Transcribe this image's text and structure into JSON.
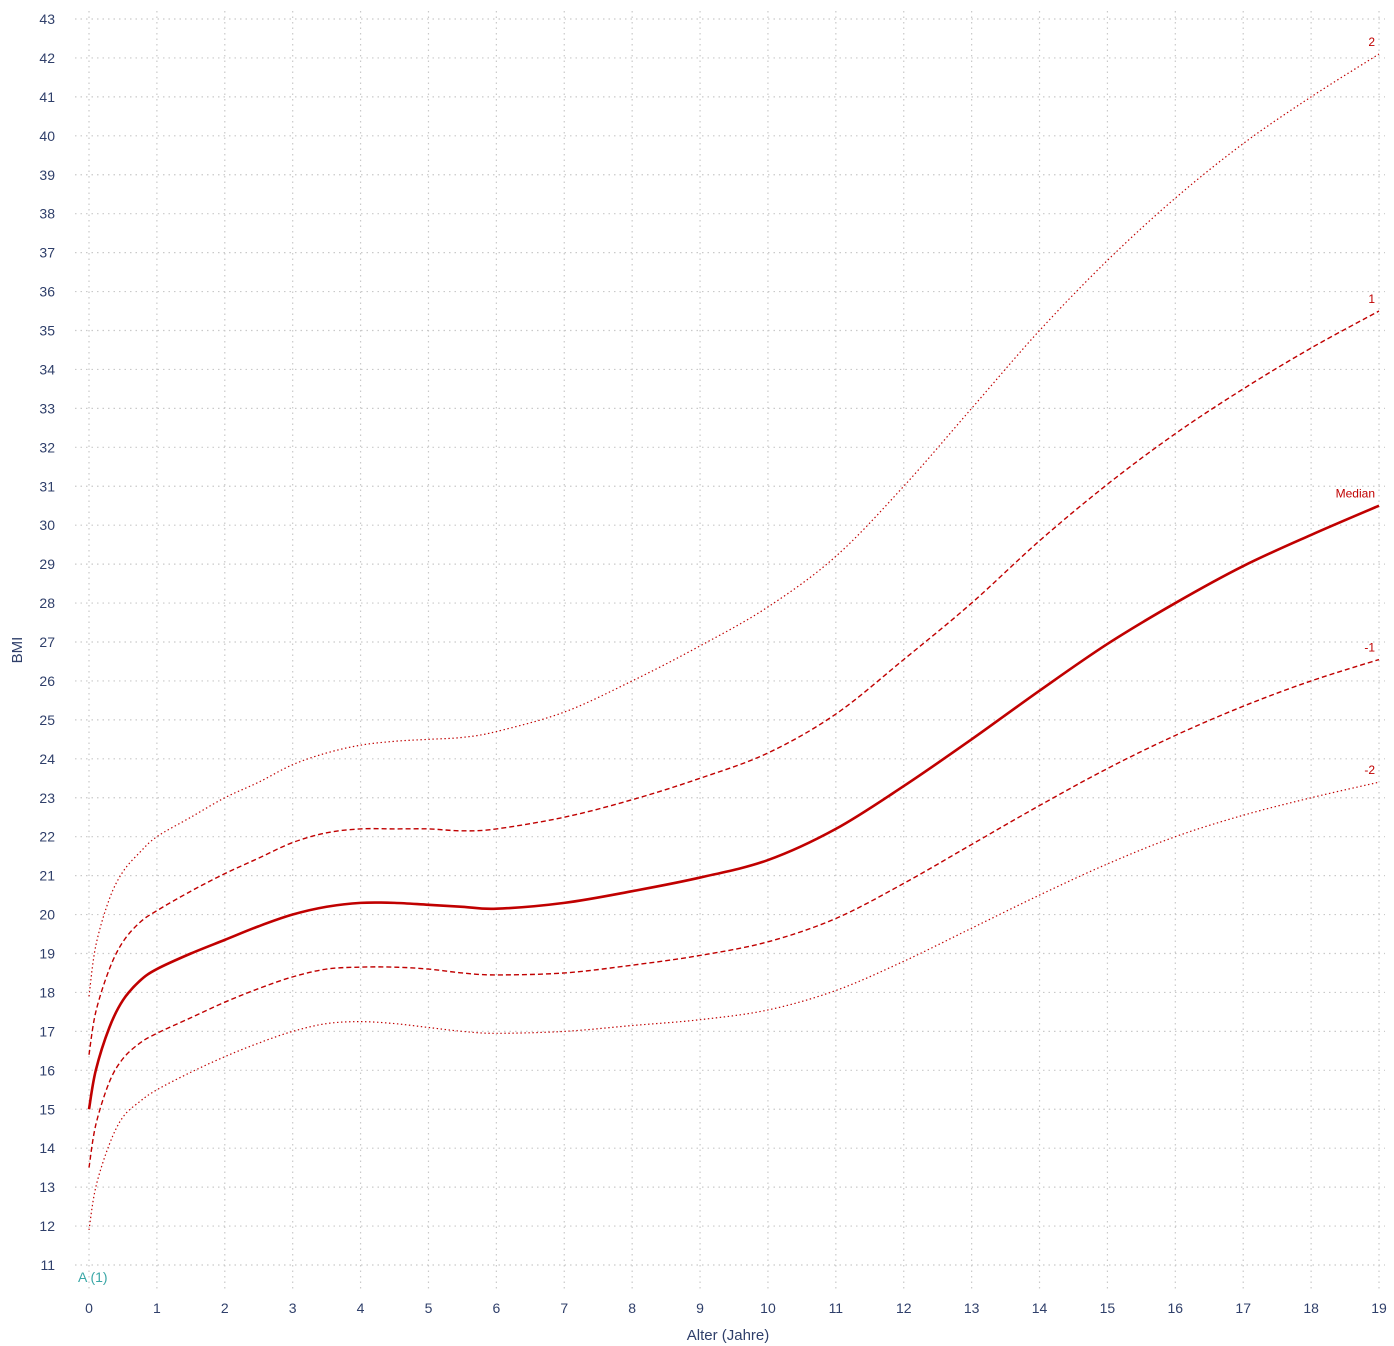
{
  "chart_data": {
    "type": "line",
    "title": "",
    "xlabel": "Alter (Jahre)",
    "ylabel": "BMI",
    "xlim": [
      0,
      19
    ],
    "ylim": [
      11,
      43
    ],
    "x_ticks": [
      0,
      1,
      2,
      3,
      4,
      5,
      6,
      7,
      8,
      9,
      10,
      11,
      12,
      13,
      14,
      15,
      16,
      17,
      18,
      19
    ],
    "y_ticks": [
      11,
      12,
      13,
      14,
      15,
      16,
      17,
      18,
      19,
      20,
      21,
      22,
      23,
      24,
      25,
      26,
      27,
      28,
      29,
      30,
      31,
      32,
      33,
      34,
      35,
      36,
      37,
      38,
      39,
      40,
      41,
      42,
      43
    ],
    "grid": true,
    "line_color": "#c00000",
    "series": [
      {
        "name": "2",
        "style": "dotted",
        "x": [
          0,
          0.1,
          0.3,
          0.5,
          0.75,
          1,
          1.5,
          2,
          2.5,
          3,
          3.5,
          4,
          4.5,
          5,
          5.5,
          6,
          7,
          8,
          9,
          10,
          11,
          12,
          13,
          14,
          15,
          16,
          17,
          18,
          19
        ],
        "y": [
          17.9,
          19.2,
          20.4,
          21.1,
          21.6,
          22.0,
          22.5,
          23.0,
          23.4,
          23.85,
          24.15,
          24.35,
          24.45,
          24.5,
          24.55,
          24.7,
          25.2,
          26.0,
          26.9,
          27.9,
          29.2,
          31.0,
          33.0,
          35.0,
          36.8,
          38.4,
          39.8,
          41.0,
          42.1
        ]
      },
      {
        "name": "1",
        "style": "dashed",
        "x": [
          0,
          0.1,
          0.3,
          0.5,
          0.75,
          1,
          1.5,
          2,
          2.5,
          3,
          3.5,
          4,
          4.5,
          5,
          5.5,
          6,
          7,
          8,
          9,
          10,
          11,
          12,
          13,
          14,
          15,
          16,
          17,
          18,
          19
        ],
        "y": [
          16.4,
          17.5,
          18.6,
          19.3,
          19.8,
          20.1,
          20.6,
          21.05,
          21.45,
          21.85,
          22.1,
          22.2,
          22.2,
          22.2,
          22.15,
          22.2,
          22.5,
          22.95,
          23.5,
          24.15,
          25.15,
          26.55,
          28.0,
          29.6,
          31.05,
          32.35,
          33.5,
          34.55,
          35.5
        ]
      },
      {
        "name": "Median",
        "style": "solid",
        "x": [
          0,
          0.1,
          0.3,
          0.5,
          0.75,
          1,
          1.5,
          2,
          2.5,
          3,
          3.5,
          4,
          4.5,
          5,
          5.5,
          6,
          7,
          8,
          9,
          10,
          11,
          12,
          13,
          14,
          15,
          16,
          17,
          18,
          19
        ],
        "y": [
          15.0,
          16.0,
          17.1,
          17.8,
          18.3,
          18.6,
          19.0,
          19.35,
          19.7,
          20.0,
          20.2,
          20.3,
          20.3,
          20.25,
          20.2,
          20.15,
          20.3,
          20.6,
          20.95,
          21.4,
          22.2,
          23.3,
          24.5,
          25.75,
          26.95,
          28.0,
          28.95,
          29.75,
          30.5
        ]
      },
      {
        "name": "-1",
        "style": "dashed",
        "x": [
          0,
          0.1,
          0.3,
          0.5,
          0.75,
          1,
          1.5,
          2,
          2.5,
          3,
          3.5,
          4,
          4.5,
          5,
          5.5,
          6,
          7,
          8,
          9,
          10,
          11,
          12,
          13,
          14,
          15,
          16,
          17,
          18,
          19
        ],
        "y": [
          13.5,
          14.6,
          15.7,
          16.3,
          16.7,
          16.95,
          17.35,
          17.75,
          18.1,
          18.4,
          18.6,
          18.65,
          18.65,
          18.6,
          18.5,
          18.45,
          18.5,
          18.7,
          18.95,
          19.3,
          19.9,
          20.8,
          21.8,
          22.8,
          23.75,
          24.6,
          25.35,
          26.0,
          26.55
        ]
      },
      {
        "name": "-2",
        "style": "dotted",
        "x": [
          0,
          0.1,
          0.3,
          0.5,
          0.75,
          1,
          1.5,
          2,
          2.5,
          3,
          3.5,
          4,
          4.5,
          5,
          5.5,
          6,
          7,
          8,
          9,
          10,
          11,
          12,
          13,
          14,
          15,
          16,
          17,
          18,
          19
        ],
        "y": [
          11.9,
          13.0,
          14.1,
          14.8,
          15.2,
          15.5,
          15.95,
          16.35,
          16.7,
          17.0,
          17.2,
          17.25,
          17.2,
          17.1,
          17.0,
          16.95,
          17.0,
          17.15,
          17.3,
          17.55,
          18.05,
          18.8,
          19.65,
          20.5,
          21.3,
          22.0,
          22.55,
          23.0,
          23.4
        ]
      }
    ],
    "annotations": [
      {
        "text": "A (1)",
        "color": "#3aa7a7",
        "x": 0.1,
        "y": 10.85
      }
    ]
  }
}
